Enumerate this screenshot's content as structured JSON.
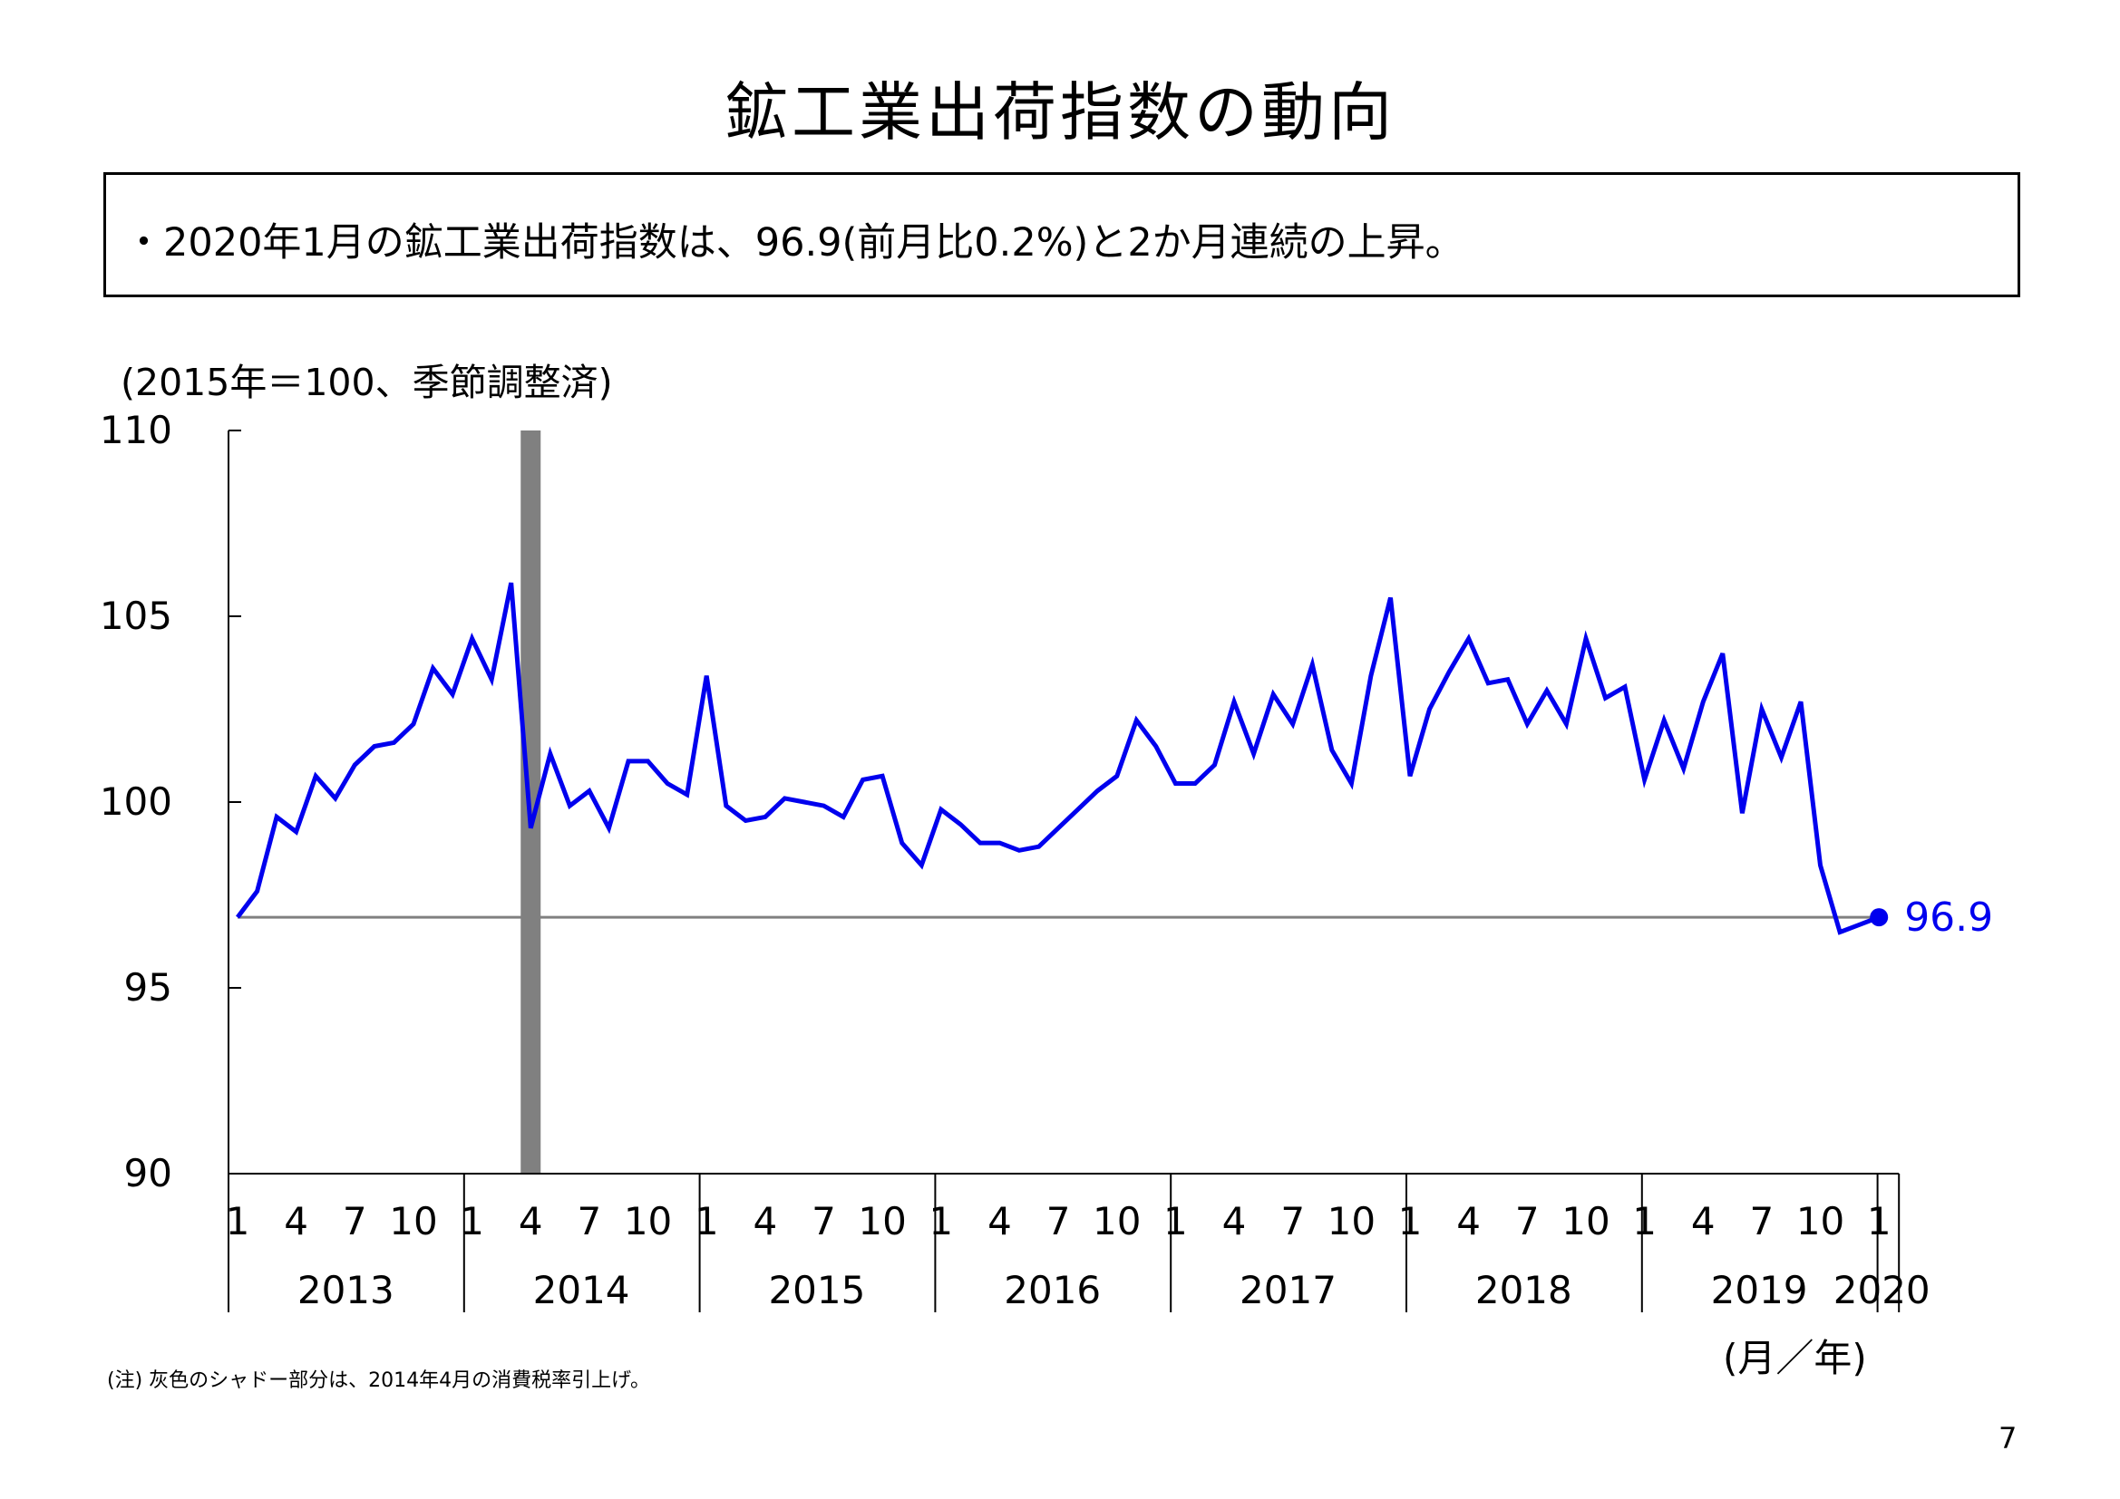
{
  "title": "鉱工業出荷指数の動向",
  "summary": "・2020年1月の鉱工業出荷指数は、96.9(前月比0.2%)と2か月連続の上昇。",
  "unit_note": "(2015年＝100、季節調整済)",
  "axis_unit_label": "(月／年)",
  "footnote": "(注) 灰色のシャドー部分は、2014年4月の消費税率引上げ。",
  "page_number": "7",
  "last_value_label": "96.9",
  "colors": {
    "line": "#0000ee",
    "reference": "#808080",
    "shade": "#808080"
  },
  "chart_data": {
    "type": "line",
    "title": "",
    "ylim": [
      90,
      110
    ],
    "yticks": [
      "110",
      "105",
      "100",
      "95",
      "90"
    ],
    "month_tick_labels": [
      "1",
      "4",
      "7",
      "10"
    ],
    "years": [
      "2013",
      "2014",
      "2015",
      "2016",
      "2017",
      "2018",
      "2019",
      "2020"
    ],
    "final_month_label": "1",
    "shade_period": "2014-04",
    "reference_line": 96.9,
    "series": [
      {
        "x_start": "2013-01",
        "x_end": "2020-01",
        "values": [
          96.9,
          97.6,
          99.6,
          99.2,
          100.7,
          100.1,
          101.0,
          101.5,
          101.6,
          102.1,
          103.6,
          102.9,
          104.4,
          103.3,
          105.9,
          99.3,
          101.3,
          99.9,
          100.3,
          99.3,
          101.1,
          101.1,
          100.5,
          100.2,
          103.4,
          99.9,
          99.5,
          99.6,
          100.1,
          100.0,
          99.9,
          99.6,
          100.6,
          100.7,
          98.9,
          98.3,
          99.8,
          99.4,
          98.9,
          98.9,
          98.7,
          98.8,
          99.3,
          99.8,
          100.3,
          100.7,
          102.2,
          101.5,
          100.5,
          100.5,
          101.0,
          102.7,
          101.3,
          102.9,
          102.1,
          103.7,
          101.4,
          100.5,
          103.4,
          105.5,
          100.7,
          102.5,
          103.5,
          104.4,
          103.2,
          103.3,
          102.1,
          103.0,
          102.1,
          104.4,
          102.8,
          103.1,
          100.6,
          102.2,
          100.9,
          102.7,
          104.0,
          99.7,
          102.5,
          101.2,
          102.7,
          98.3,
          96.5,
          96.7,
          96.9
        ]
      }
    ]
  }
}
